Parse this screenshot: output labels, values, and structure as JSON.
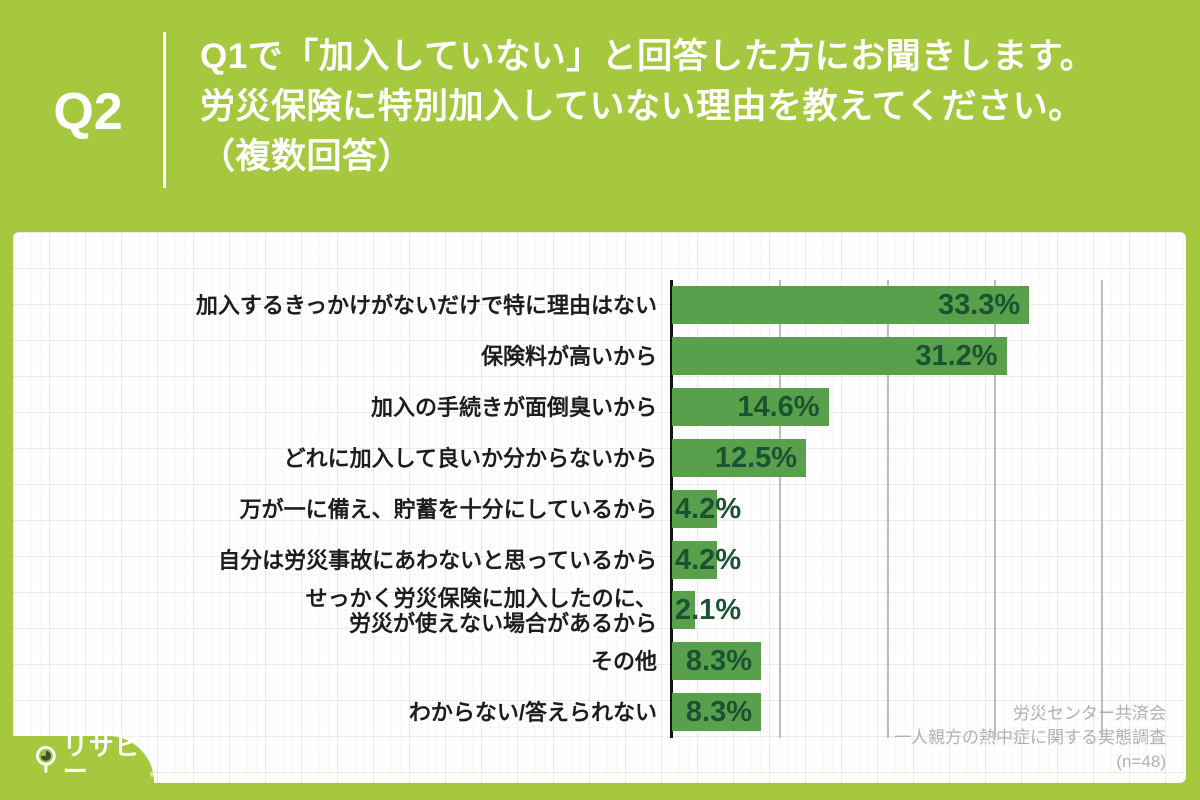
{
  "header": {
    "question_number": "Q2",
    "question_lines": [
      "Q1で「加入していない」と回答した方にお聞きします。",
      "労災保険に特別加入していない理由を教えてください。",
      "（複数回答）"
    ]
  },
  "chart_data": {
    "type": "bar",
    "orientation": "horizontal",
    "categories": [
      [
        "加入するきっかけがないだけで特に理由はない"
      ],
      [
        "保険料が高いから"
      ],
      [
        "加入の手続きが面倒臭いから"
      ],
      [
        "どれに加入して良いか分からないから"
      ],
      [
        "万が一に備え、貯蓄を十分にしているから"
      ],
      [
        "自分は労災事故にあわないと思っているから"
      ],
      [
        "せっかく労災保険に加入したのに、",
        "労災が使えない場合があるから"
      ],
      [
        "その他"
      ],
      [
        "わからない/答えられない"
      ]
    ],
    "values": [
      33.3,
      31.2,
      14.6,
      12.5,
      4.2,
      4.2,
      2.1,
      8.3,
      8.3
    ],
    "value_labels": [
      "33.3%",
      "31.2%",
      "14.6%",
      "12.5%",
      "4.2%",
      "4.2%",
      "2.1%",
      "8.3%",
      "8.3%"
    ],
    "xlim": [
      0,
      45.5
    ],
    "gridlines_pct": [
      10,
      20,
      30,
      40
    ],
    "grid": "vertical-only, no tick labels",
    "legend": "none",
    "bar_color": "#59a04c",
    "value_text_color": "#1b5232"
  },
  "source": {
    "lines": [
      "労災センター共済会",
      "一人親方の熱中症に関する実態調査",
      "(n=48)"
    ]
  },
  "brand": {
    "logo_text": "リサピー"
  },
  "colors": {
    "background_green": "#a6c83f",
    "card_white": "#ffffff",
    "bar_green": "#59a04c",
    "value_dark_green": "#1b5232",
    "label_black": "#1d1d1d",
    "source_gray": "#b2b0b1",
    "gridline_gray": "#bdbdbd",
    "axis_black": "#121212"
  }
}
